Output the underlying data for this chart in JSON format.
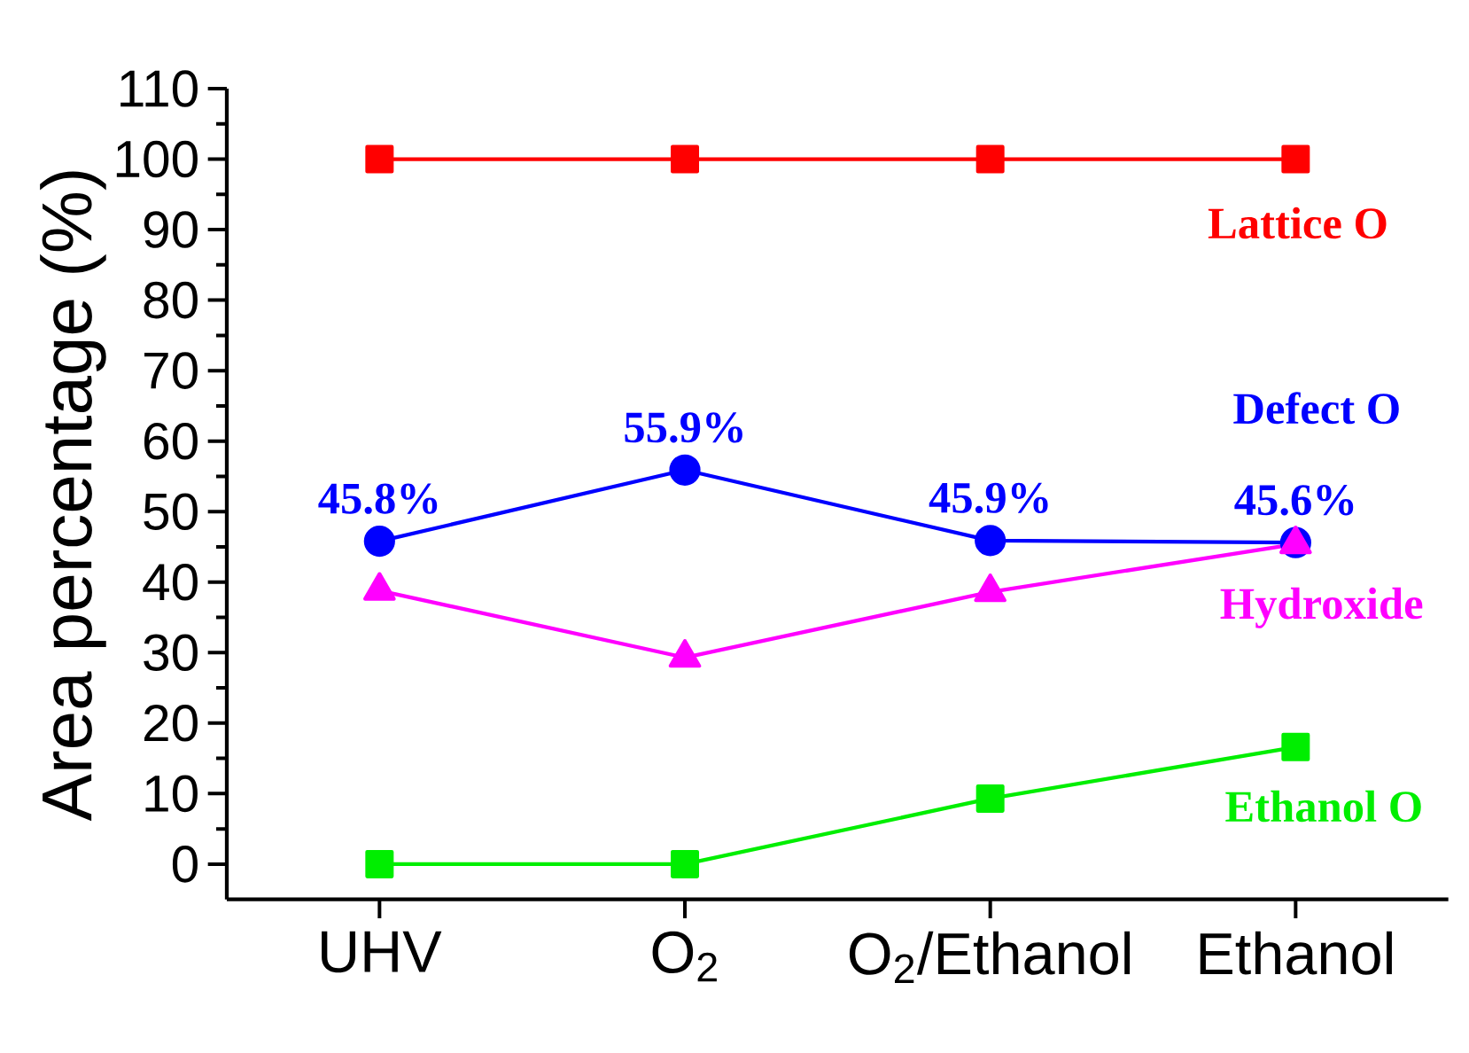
{
  "chart_data": {
    "type": "line",
    "ylabel": "Area percentage (%)",
    "categories": [
      "UHV",
      "O$_{2}$",
      "O$_{2}$/Ethanol",
      "Ethanol"
    ],
    "ylim": [
      -5,
      110
    ],
    "yticks": [
      0,
      10,
      20,
      30,
      40,
      50,
      60,
      70,
      80,
      90,
      100,
      110
    ],
    "series": [
      {
        "name": "Lattice O",
        "color": "#ff0000",
        "marker": "square",
        "values": [
          100,
          100,
          100,
          100
        ]
      },
      {
        "name": "Defect O",
        "color": "#0000ff",
        "marker": "circle",
        "values": [
          45.8,
          55.9,
          45.9,
          45.6
        ],
        "value_labels": [
          "45.8%",
          "55.9%",
          "45.9%",
          "45.6%"
        ]
      },
      {
        "name": "Hydroxide",
        "color": "#ff00ff",
        "marker": "triangle",
        "values": [
          38.8,
          29.3,
          38.6,
          45.4
        ]
      },
      {
        "name": "Ethanol O",
        "color": "#00ee00",
        "marker": "square",
        "values": [
          0,
          0,
          9.3,
          16.6
        ]
      }
    ]
  }
}
